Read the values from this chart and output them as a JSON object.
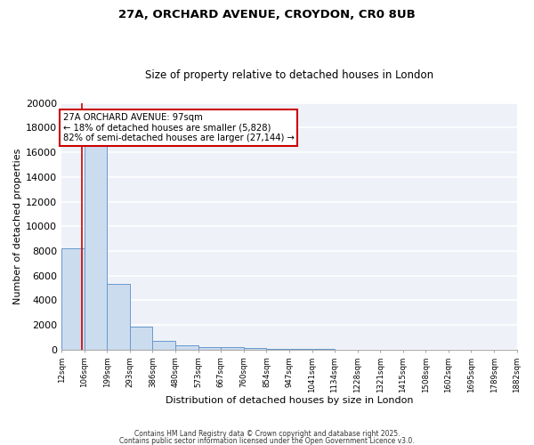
{
  "title1": "27A, ORCHARD AVENUE, CROYDON, CR0 8UB",
  "title2": "Size of property relative to detached houses in London",
  "xlabel": "Distribution of detached houses by size in London",
  "ylabel": "Number of detached properties",
  "bar_color": "#ccdcef",
  "bar_edge_color": "#6699cc",
  "background_color": "#eef2f8",
  "grid_color": "#ffffff",
  "annotation_text": "27A ORCHARD AVENUE: 97sqm\n← 18% of detached houses are smaller (5,828)\n82% of semi-detached houses are larger (27,144) →",
  "property_size": 97,
  "property_line_color": "#cc0000",
  "annotation_box_color": "#ffffff",
  "annotation_box_edge_color": "#cc0000",
  "bins": [
    12,
    106,
    199,
    293,
    386,
    480,
    573,
    667,
    760,
    854,
    947,
    1041,
    1134,
    1228,
    1321,
    1415,
    1508,
    1602,
    1695,
    1789,
    1882
  ],
  "counts": [
    8200,
    16700,
    5350,
    1850,
    700,
    320,
    220,
    175,
    130,
    90,
    60,
    30,
    15,
    10,
    8,
    5,
    4,
    3,
    2,
    1
  ],
  "ylim": [
    0,
    20000
  ],
  "yticks": [
    0,
    2000,
    4000,
    6000,
    8000,
    10000,
    12000,
    14000,
    16000,
    18000,
    20000
  ],
  "footnote1": "Contains HM Land Registry data © Crown copyright and database right 2025.",
  "footnote2": "Contains public sector information licensed under the Open Government Licence v3.0."
}
